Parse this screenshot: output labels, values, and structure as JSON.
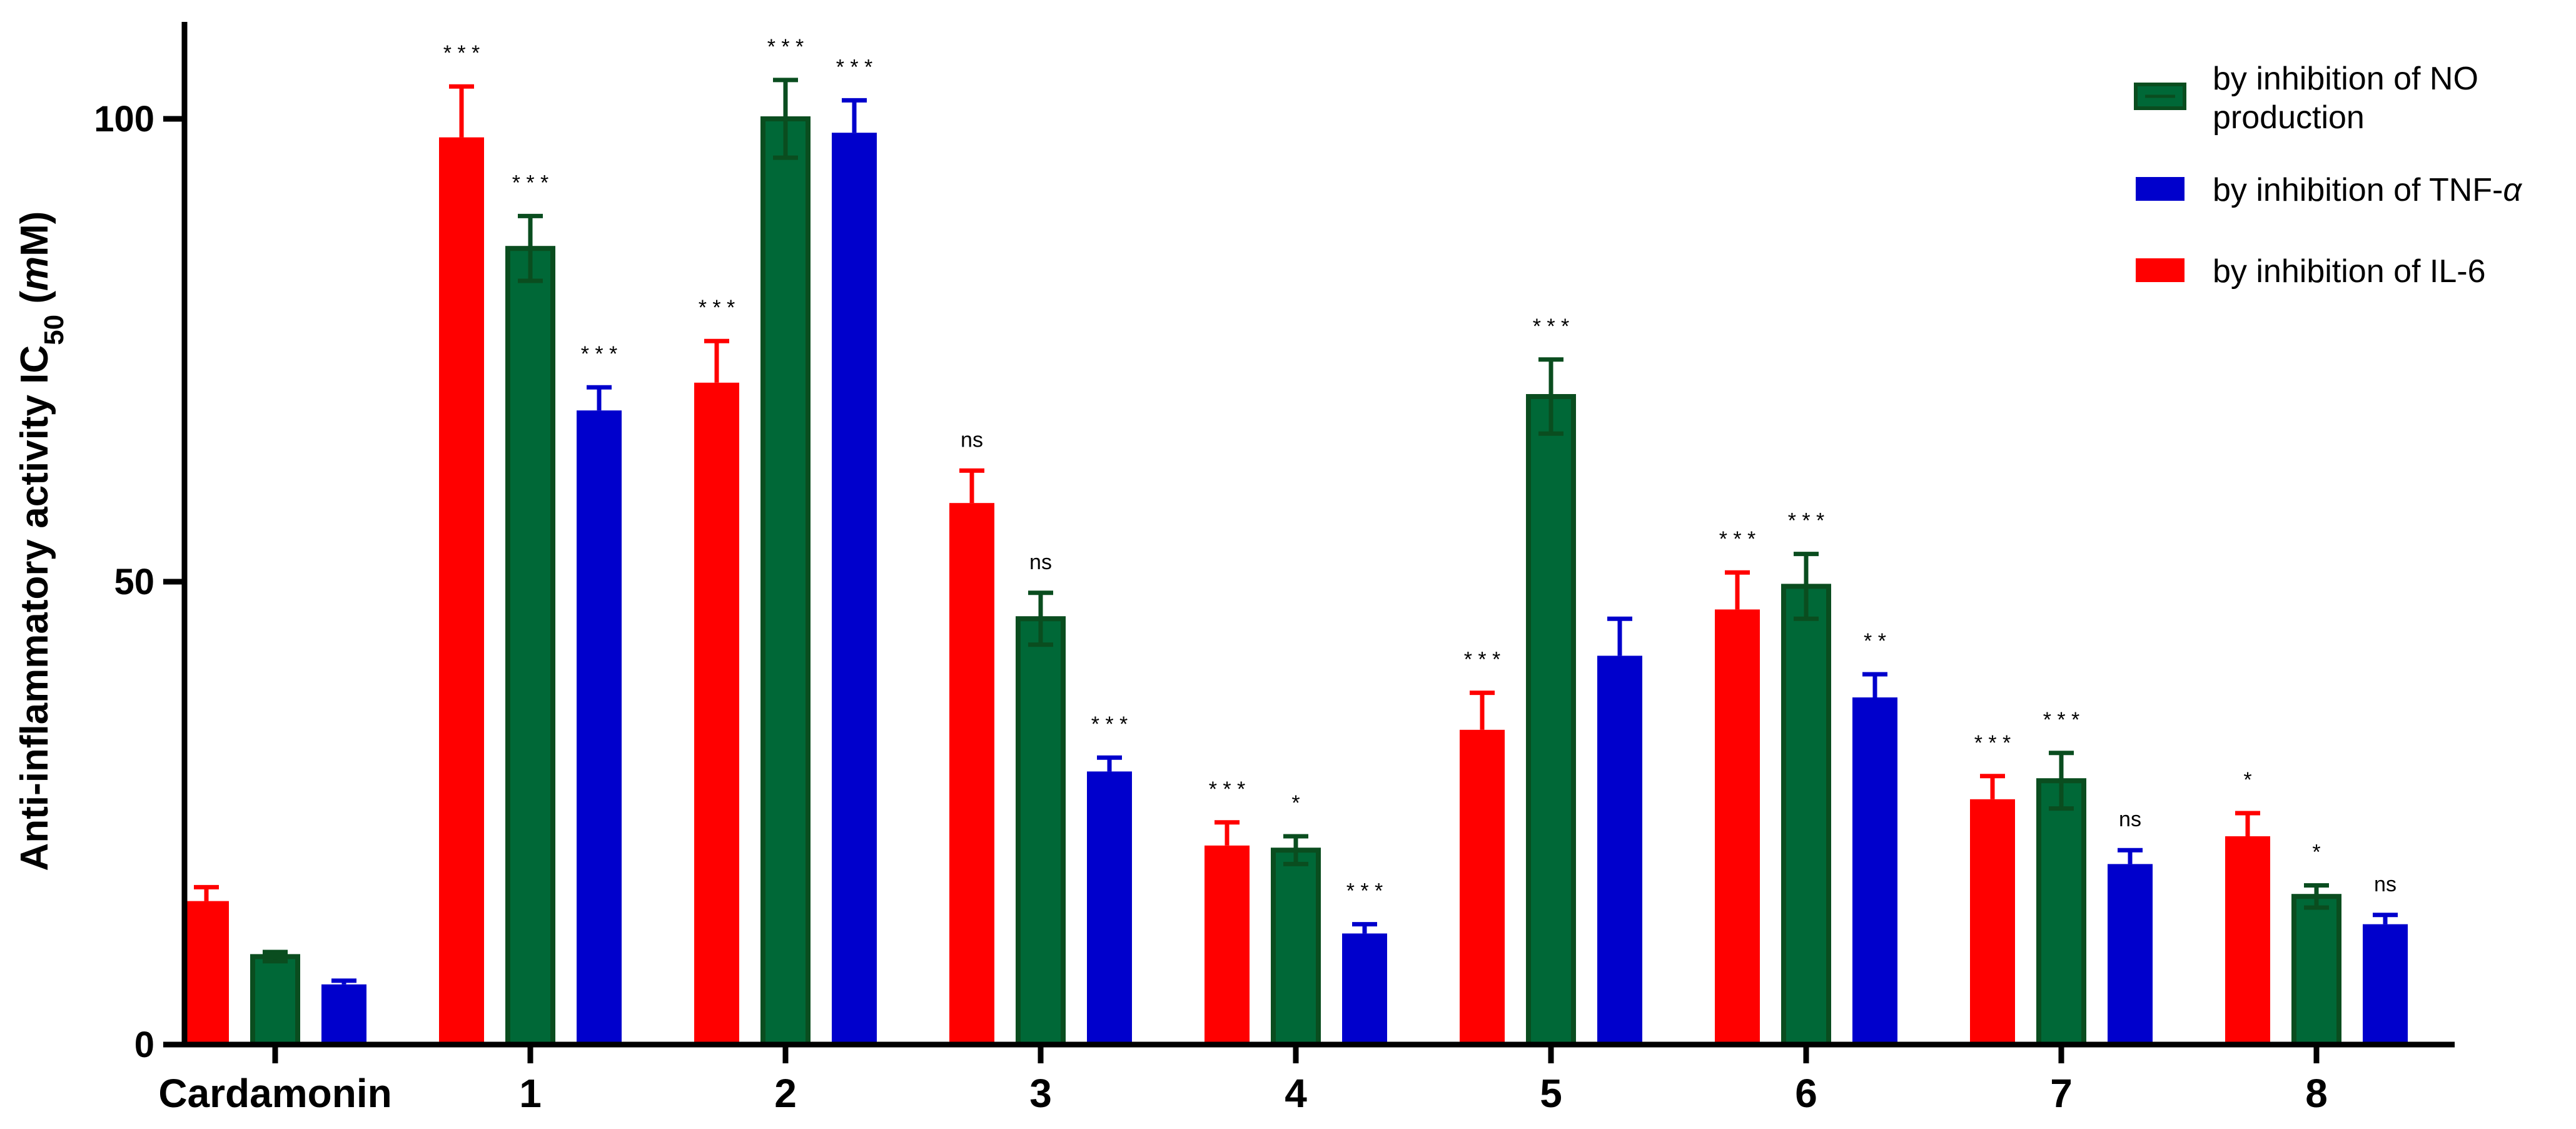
{
  "chart_data": {
    "type": "bar",
    "ylabel": "Anti-inflammatory activity IC",
    "ylabel_sub": "50",
    "ylabel_unit": " (",
    "ylabel_unit_italic": "m",
    "ylabel_unit_end": "M)",
    "ylim": [
      0,
      110
    ],
    "yticks": [
      0,
      50,
      100
    ],
    "grid": false,
    "legend_position": "top-right",
    "categories": [
      "Cardamonin",
      "1",
      "2",
      "3",
      "4",
      "5",
      "6",
      "7",
      "8"
    ],
    "series": [
      {
        "name": "by inhibition of IL-6",
        "color": "#ff0000",
        "values": [
          15.5,
          98,
          71.5,
          58.5,
          21.5,
          34,
          47,
          26.5,
          22.5
        ],
        "errors": [
          1.5,
          5.5,
          4.5,
          3.5,
          2.5,
          4,
          4,
          2.5,
          2.5
        ],
        "significance": [
          "",
          "* * *",
          "* * *",
          "ns",
          "* * *",
          "* * *",
          "* * *",
          "* * *",
          "*"
        ]
      },
      {
        "name": "by inhibition of NO production",
        "name_lines": [
          "by inhibition of NO",
          "production"
        ],
        "color": "#006837",
        "values": [
          9.5,
          86,
          100,
          46,
          21,
          70,
          49.5,
          28.5,
          16
        ],
        "errors": [
          0.5,
          3.5,
          4.2,
          2.8,
          1.5,
          4,
          3.5,
          3,
          1.2
        ],
        "significance": [
          "",
          "* * *",
          "* * *",
          "ns",
          "*",
          "* * *",
          "* * *",
          "* * *",
          "*"
        ]
      },
      {
        "name": "by inhibition of TNF-α",
        "name_lines": [
          "by inhibition of TNF-",
          "α"
        ],
        "color": "#0000cc",
        "values": [
          6.5,
          68.5,
          98.5,
          29.5,
          12,
          42,
          37.5,
          19.5,
          13
        ],
        "errors": [
          0.4,
          2.5,
          3.5,
          1.5,
          1,
          4,
          2.5,
          1.5,
          1
        ],
        "significance": [
          "",
          "* * *",
          "* * *",
          "* * *",
          "* * *",
          "",
          "* *",
          "ns",
          "ns"
        ]
      }
    ]
  }
}
